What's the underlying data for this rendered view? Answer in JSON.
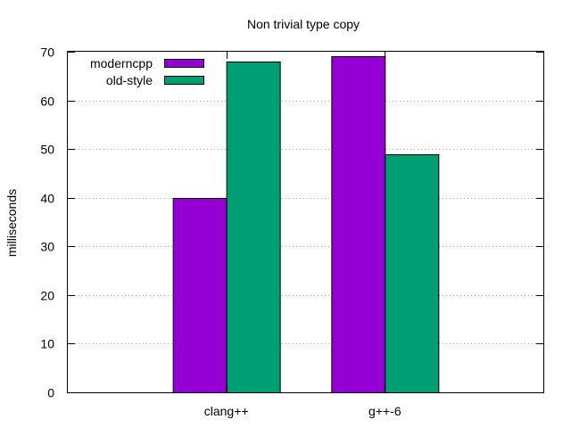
{
  "chart_data": {
    "type": "bar",
    "title": "Non trivial type copy",
    "xlabel": "",
    "ylabel": "milliseconds",
    "categories": [
      "clang++",
      "g++-6"
    ],
    "series": [
      {
        "name": "moderncpp",
        "values": [
          40,
          69
        ],
        "color": "#9400d3"
      },
      {
        "name": "old-style",
        "values": [
          68,
          49
        ],
        "color": "#009e73"
      }
    ],
    "ylim": [
      0,
      70
    ],
    "yticks": [
      0,
      10,
      20,
      30,
      40,
      50,
      60,
      70
    ],
    "grid": "horizontal dotted",
    "legend_position": "top-left"
  }
}
